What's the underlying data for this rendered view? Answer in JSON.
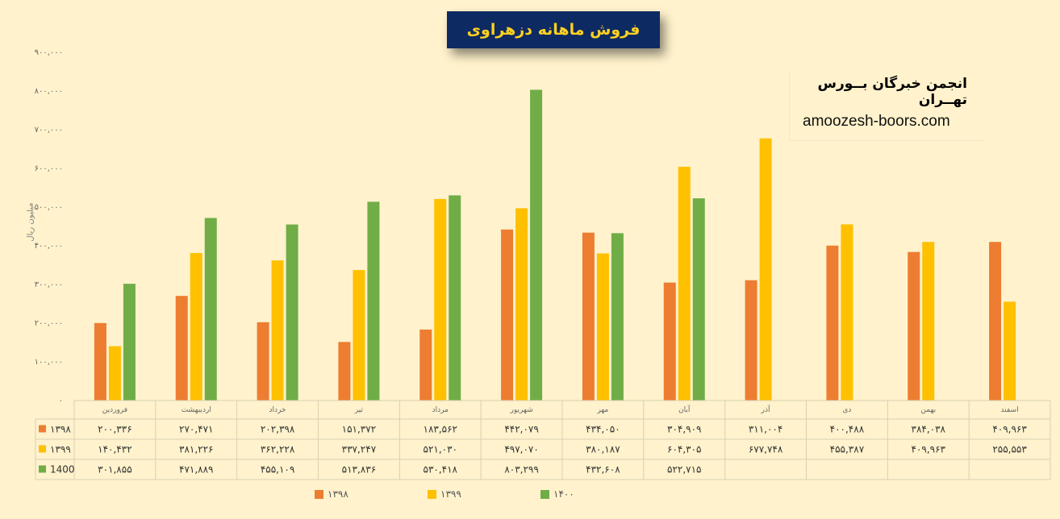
{
  "title": "فروش ماهانه دزهراوی",
  "brand": {
    "name": "انجمن خبرگان بــورس تهــران",
    "site": "amoozesh-boors.com"
  },
  "chart_data": {
    "type": "bar",
    "ylabel": "میلیون ریال",
    "ylim": [
      0,
      900000
    ],
    "yticks": [
      0,
      100000,
      200000,
      300000,
      400000,
      500000,
      600000,
      700000,
      800000,
      900000
    ],
    "ytick_labels": [
      "۰",
      "۱۰۰,۰۰۰",
      "۲۰۰,۰۰۰",
      "۳۰۰,۰۰۰",
      "۴۰۰,۰۰۰",
      "۵۰۰,۰۰۰",
      "۶۰۰,۰۰۰",
      "۷۰۰,۰۰۰",
      "۸۰۰,۰۰۰",
      "۹۰۰,۰۰۰"
    ],
    "categories": [
      "فروردین",
      "اردیبهشت",
      "خرداد",
      "تیر",
      "مرداد",
      "شهریور",
      "مهر",
      "آبان",
      "آذر",
      "دی",
      "بهمن",
      "اسفند"
    ],
    "series": [
      {
        "name": "۱۳۹۸",
        "color": "#ed7d31",
        "values": [
          200336,
          270471,
          202398,
          151372,
          183562,
          442079,
          434050,
          304909,
          311004,
          400488,
          384038,
          409963
        ],
        "labels": [
          "۲۰۰,۳۳۶",
          "۲۷۰,۴۷۱",
          "۲۰۲,۳۹۸",
          "۱۵۱,۳۷۲",
          "۱۸۳,۵۶۲",
          "۴۴۲,۰۷۹",
          "۴۳۴,۰۵۰",
          "۳۰۴,۹۰۹",
          "۳۱۱,۰۰۴",
          "۴۰۰,۴۸۸",
          "۳۸۴,۰۳۸",
          "۴۰۹,۹۶۳"
        ]
      },
      {
        "name": "۱۳۹۹",
        "color": "#ffc000",
        "values": [
          140432,
          381226,
          362228,
          337247,
          521030,
          497070,
          380187,
          604305,
          677748,
          455387,
          409963,
          255553
        ],
        "labels": [
          "۱۴۰,۴۳۲",
          "۳۸۱,۲۲۶",
          "۳۶۲,۲۲۸",
          "۳۳۷,۲۴۷",
          "۵۲۱,۰۳۰",
          "۴۹۷,۰۷۰",
          "۳۸۰,۱۸۷",
          "۶۰۴,۳۰۵",
          "۶۷۷,۷۴۸",
          "۴۵۵,۳۸۷",
          "۴۰۹,۹۶۳",
          "۲۵۵,۵۵۳"
        ]
      },
      {
        "name": "۱۴۰۰",
        "color": "#70ad47",
        "values": [
          301855,
          471889,
          455109,
          513836,
          530418,
          803299,
          432608,
          522715,
          null,
          null,
          null,
          null
        ],
        "labels": [
          "۳۰۱,۸۵۵",
          "۴۷۱,۸۸۹",
          "۴۵۵,۱۰۹",
          "۵۱۳,۸۳۶",
          "۵۳۰,۴۱۸",
          "۸۰۳,۲۹۹",
          "۴۳۲,۶۰۸",
          "۵۲۲,۷۱۵",
          "",
          "",
          "",
          ""
        ]
      }
    ],
    "table_row_labels": [
      "۱۳۹۸",
      "۱۳۹۹",
      "1400"
    ],
    "legend": [
      "۱۳۹۸",
      "۱۳۹۹",
      "۱۴۰۰"
    ],
    "legend_position": "bottom",
    "grid": false
  }
}
